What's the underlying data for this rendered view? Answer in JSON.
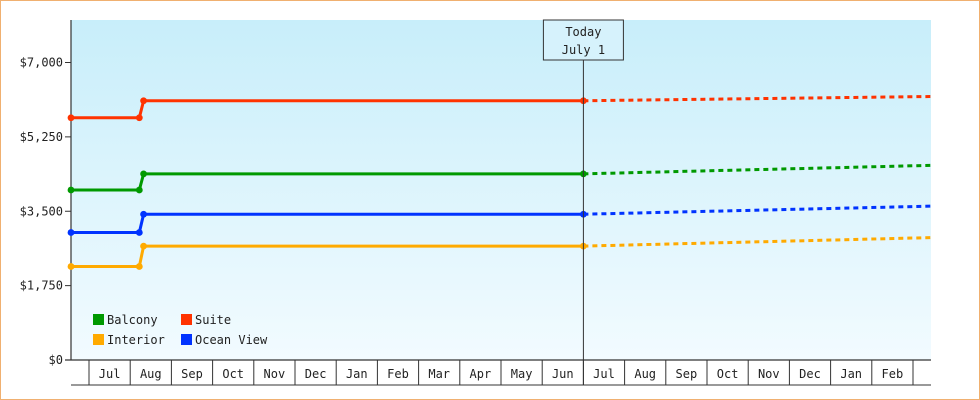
{
  "chart_data": {
    "type": "line",
    "title": "",
    "xlabel": "",
    "ylabel": "",
    "ylim": [
      0,
      8000
    ],
    "y_ticks": [
      0,
      1750,
      3500,
      5250,
      7000
    ],
    "y_tick_labels": [
      "$0",
      "$1,750",
      "$3,500",
      "$5,250",
      "$7,000"
    ],
    "months": [
      "Jul",
      "Aug",
      "Sep",
      "Oct",
      "Nov",
      "Dec",
      "Jan",
      "Feb",
      "Mar",
      "Apr",
      "May",
      "Jun",
      "Jul",
      "Aug",
      "Sep",
      "Oct",
      "Nov",
      "Dec",
      "Jan",
      "Feb"
    ],
    "today_index": 12,
    "today_label_line1": "Today",
    "today_label_line2": "July 1",
    "grid": false,
    "legend_position": "bottom-left",
    "series": [
      {
        "name": "Suite",
        "color": "#ff3300",
        "history_points": [
          [
            0,
            5700
          ],
          [
            1.6,
            5700
          ],
          [
            1.7,
            6100
          ],
          [
            12,
            6100
          ]
        ],
        "forecast_points": [
          [
            12,
            6100
          ],
          [
            20.5,
            6200
          ]
        ]
      },
      {
        "name": "Balcony",
        "color": "#009900",
        "history_points": [
          [
            0,
            4000
          ],
          [
            1.6,
            4000
          ],
          [
            1.7,
            4380
          ],
          [
            12,
            4380
          ]
        ],
        "forecast_points": [
          [
            12,
            4380
          ],
          [
            20.5,
            4580
          ]
        ]
      },
      {
        "name": "Ocean View",
        "color": "#0033ff",
        "history_points": [
          [
            0,
            3000
          ],
          [
            1.6,
            3000
          ],
          [
            1.7,
            3430
          ],
          [
            12,
            3430
          ]
        ],
        "forecast_points": [
          [
            12,
            3430
          ],
          [
            20.5,
            3620
          ]
        ]
      },
      {
        "name": "Interior",
        "color": "#ffaa00",
        "history_points": [
          [
            0,
            2200
          ],
          [
            1.6,
            2200
          ],
          [
            1.7,
            2680
          ],
          [
            12,
            2680
          ]
        ],
        "forecast_points": [
          [
            12,
            2680
          ],
          [
            20.5,
            2880
          ]
        ]
      }
    ],
    "legend": [
      {
        "name": "Balcony",
        "color": "#009900"
      },
      {
        "name": "Suite",
        "color": "#ff3300"
      },
      {
        "name": "Interior",
        "color": "#ffaa00"
      },
      {
        "name": "Ocean View",
        "color": "#0033ff"
      }
    ]
  }
}
